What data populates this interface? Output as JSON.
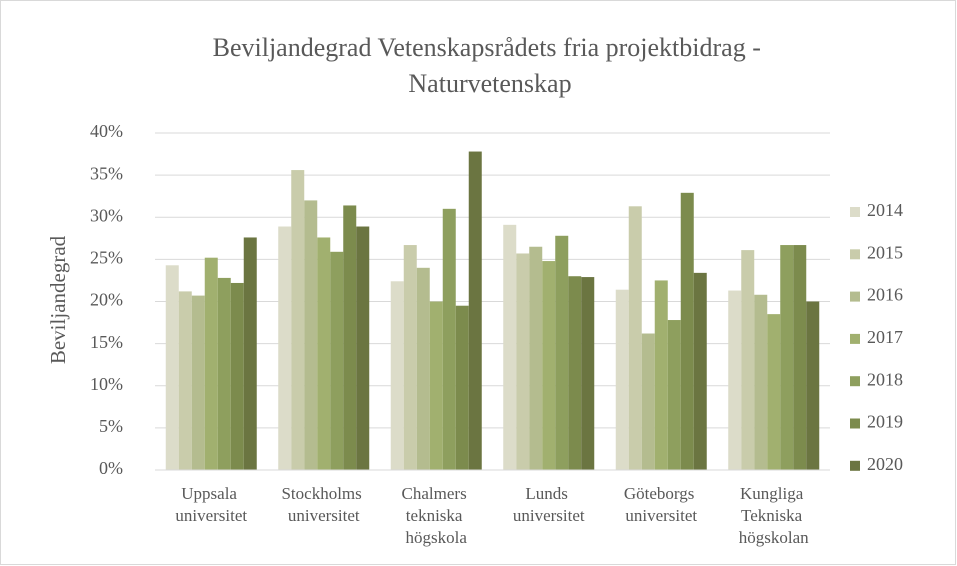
{
  "chart_data": {
    "type": "bar",
    "title": "Beviljandegrad Vetenskapsrådets fria projektbidrag - Naturvetenskap",
    "y_label": "Beviljandegrad",
    "categories": [
      "Uppsala universitet",
      "Stockholms universitet",
      "Chalmers tekniska högskola",
      "Lunds universitet",
      "Göteborgs universitet",
      "Kungliga Tekniska högskolan"
    ],
    "series": [
      {
        "name": "2014",
        "color": "#dcdcc9",
        "values": [
          24.3,
          28.9,
          22.4,
          29.1,
          21.4,
          21.3
        ]
      },
      {
        "name": "2015",
        "color": "#c9ccab",
        "values": [
          21.2,
          35.6,
          26.7,
          25.7,
          31.3,
          26.1
        ]
      },
      {
        "name": "2016",
        "color": "#b4bc8f",
        "values": [
          20.7,
          32.0,
          24.0,
          26.5,
          16.2,
          20.8
        ]
      },
      {
        "name": "2017",
        "color": "#a1b06f",
        "values": [
          25.2,
          27.6,
          20.0,
          24.8,
          22.5,
          18.5
        ]
      },
      {
        "name": "2018",
        "color": "#8e9f5e",
        "values": [
          22.8,
          25.9,
          31.0,
          27.8,
          17.8,
          26.7
        ]
      },
      {
        "name": "2019",
        "color": "#7c8b4d",
        "values": [
          22.2,
          31.4,
          19.5,
          23.0,
          32.9,
          26.7
        ]
      },
      {
        "name": "2020",
        "color": "#6b7541",
        "values": [
          27.6,
          28.9,
          37.8,
          22.9,
          23.4,
          20.0
        ]
      }
    ],
    "ylim": [
      0,
      40
    ],
    "yticks": [
      {
        "value": 0,
        "label": "0%"
      },
      {
        "value": 5,
        "label": "5%"
      },
      {
        "value": 10,
        "label": "10%"
      },
      {
        "value": 15,
        "label": "15%"
      },
      {
        "value": 20,
        "label": "20%"
      },
      {
        "value": 25,
        "label": "25%"
      },
      {
        "value": 30,
        "label": "30%"
      },
      {
        "value": 35,
        "label": "35%"
      },
      {
        "value": 40,
        "label": "40%"
      }
    ],
    "grid": true,
    "legend": "right"
  }
}
